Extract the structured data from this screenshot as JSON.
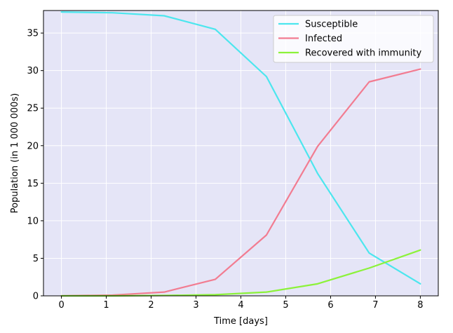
{
  "chart_data": {
    "type": "line",
    "xlabel": "Time [days]",
    "ylabel": "Population (in 1 000 000s)",
    "xlim": [
      -0.4,
      8.4
    ],
    "ylim": [
      0,
      38
    ],
    "xticks": [
      "0",
      "1",
      "2",
      "3",
      "4",
      "5",
      "6",
      "7",
      "8"
    ],
    "yticks": [
      "0",
      "5",
      "10",
      "15",
      "20",
      "25",
      "30",
      "35"
    ],
    "grid": true,
    "legend_position": "top-right",
    "background_color": "#e5e5f7",
    "series": [
      {
        "name": "Susceptible",
        "color": "#4ce6ee",
        "points": [
          [
            0,
            37.8
          ],
          [
            1.14,
            37.7
          ],
          [
            2.29,
            37.3
          ],
          [
            3.43,
            35.5
          ],
          [
            4.57,
            29.2
          ],
          [
            5.71,
            16.3
          ],
          [
            6.86,
            5.7
          ],
          [
            8,
            1.6
          ]
        ]
      },
      {
        "name": "Infected",
        "color": "#f27c91",
        "points": [
          [
            0,
            0.0
          ],
          [
            1.14,
            0.1
          ],
          [
            2.29,
            0.5
          ],
          [
            3.43,
            2.2
          ],
          [
            4.57,
            8.1
          ],
          [
            5.71,
            19.9
          ],
          [
            6.86,
            28.5
          ],
          [
            8,
            30.2
          ]
        ]
      },
      {
        "name": "Recovered with immunity",
        "color": "#8cf23a",
        "points": [
          [
            0,
            0.0
          ],
          [
            1.14,
            0.0
          ],
          [
            2.29,
            0.05
          ],
          [
            3.43,
            0.15
          ],
          [
            4.57,
            0.5
          ],
          [
            5.71,
            1.6
          ],
          [
            6.86,
            3.7
          ],
          [
            8,
            6.1
          ]
        ]
      }
    ]
  }
}
